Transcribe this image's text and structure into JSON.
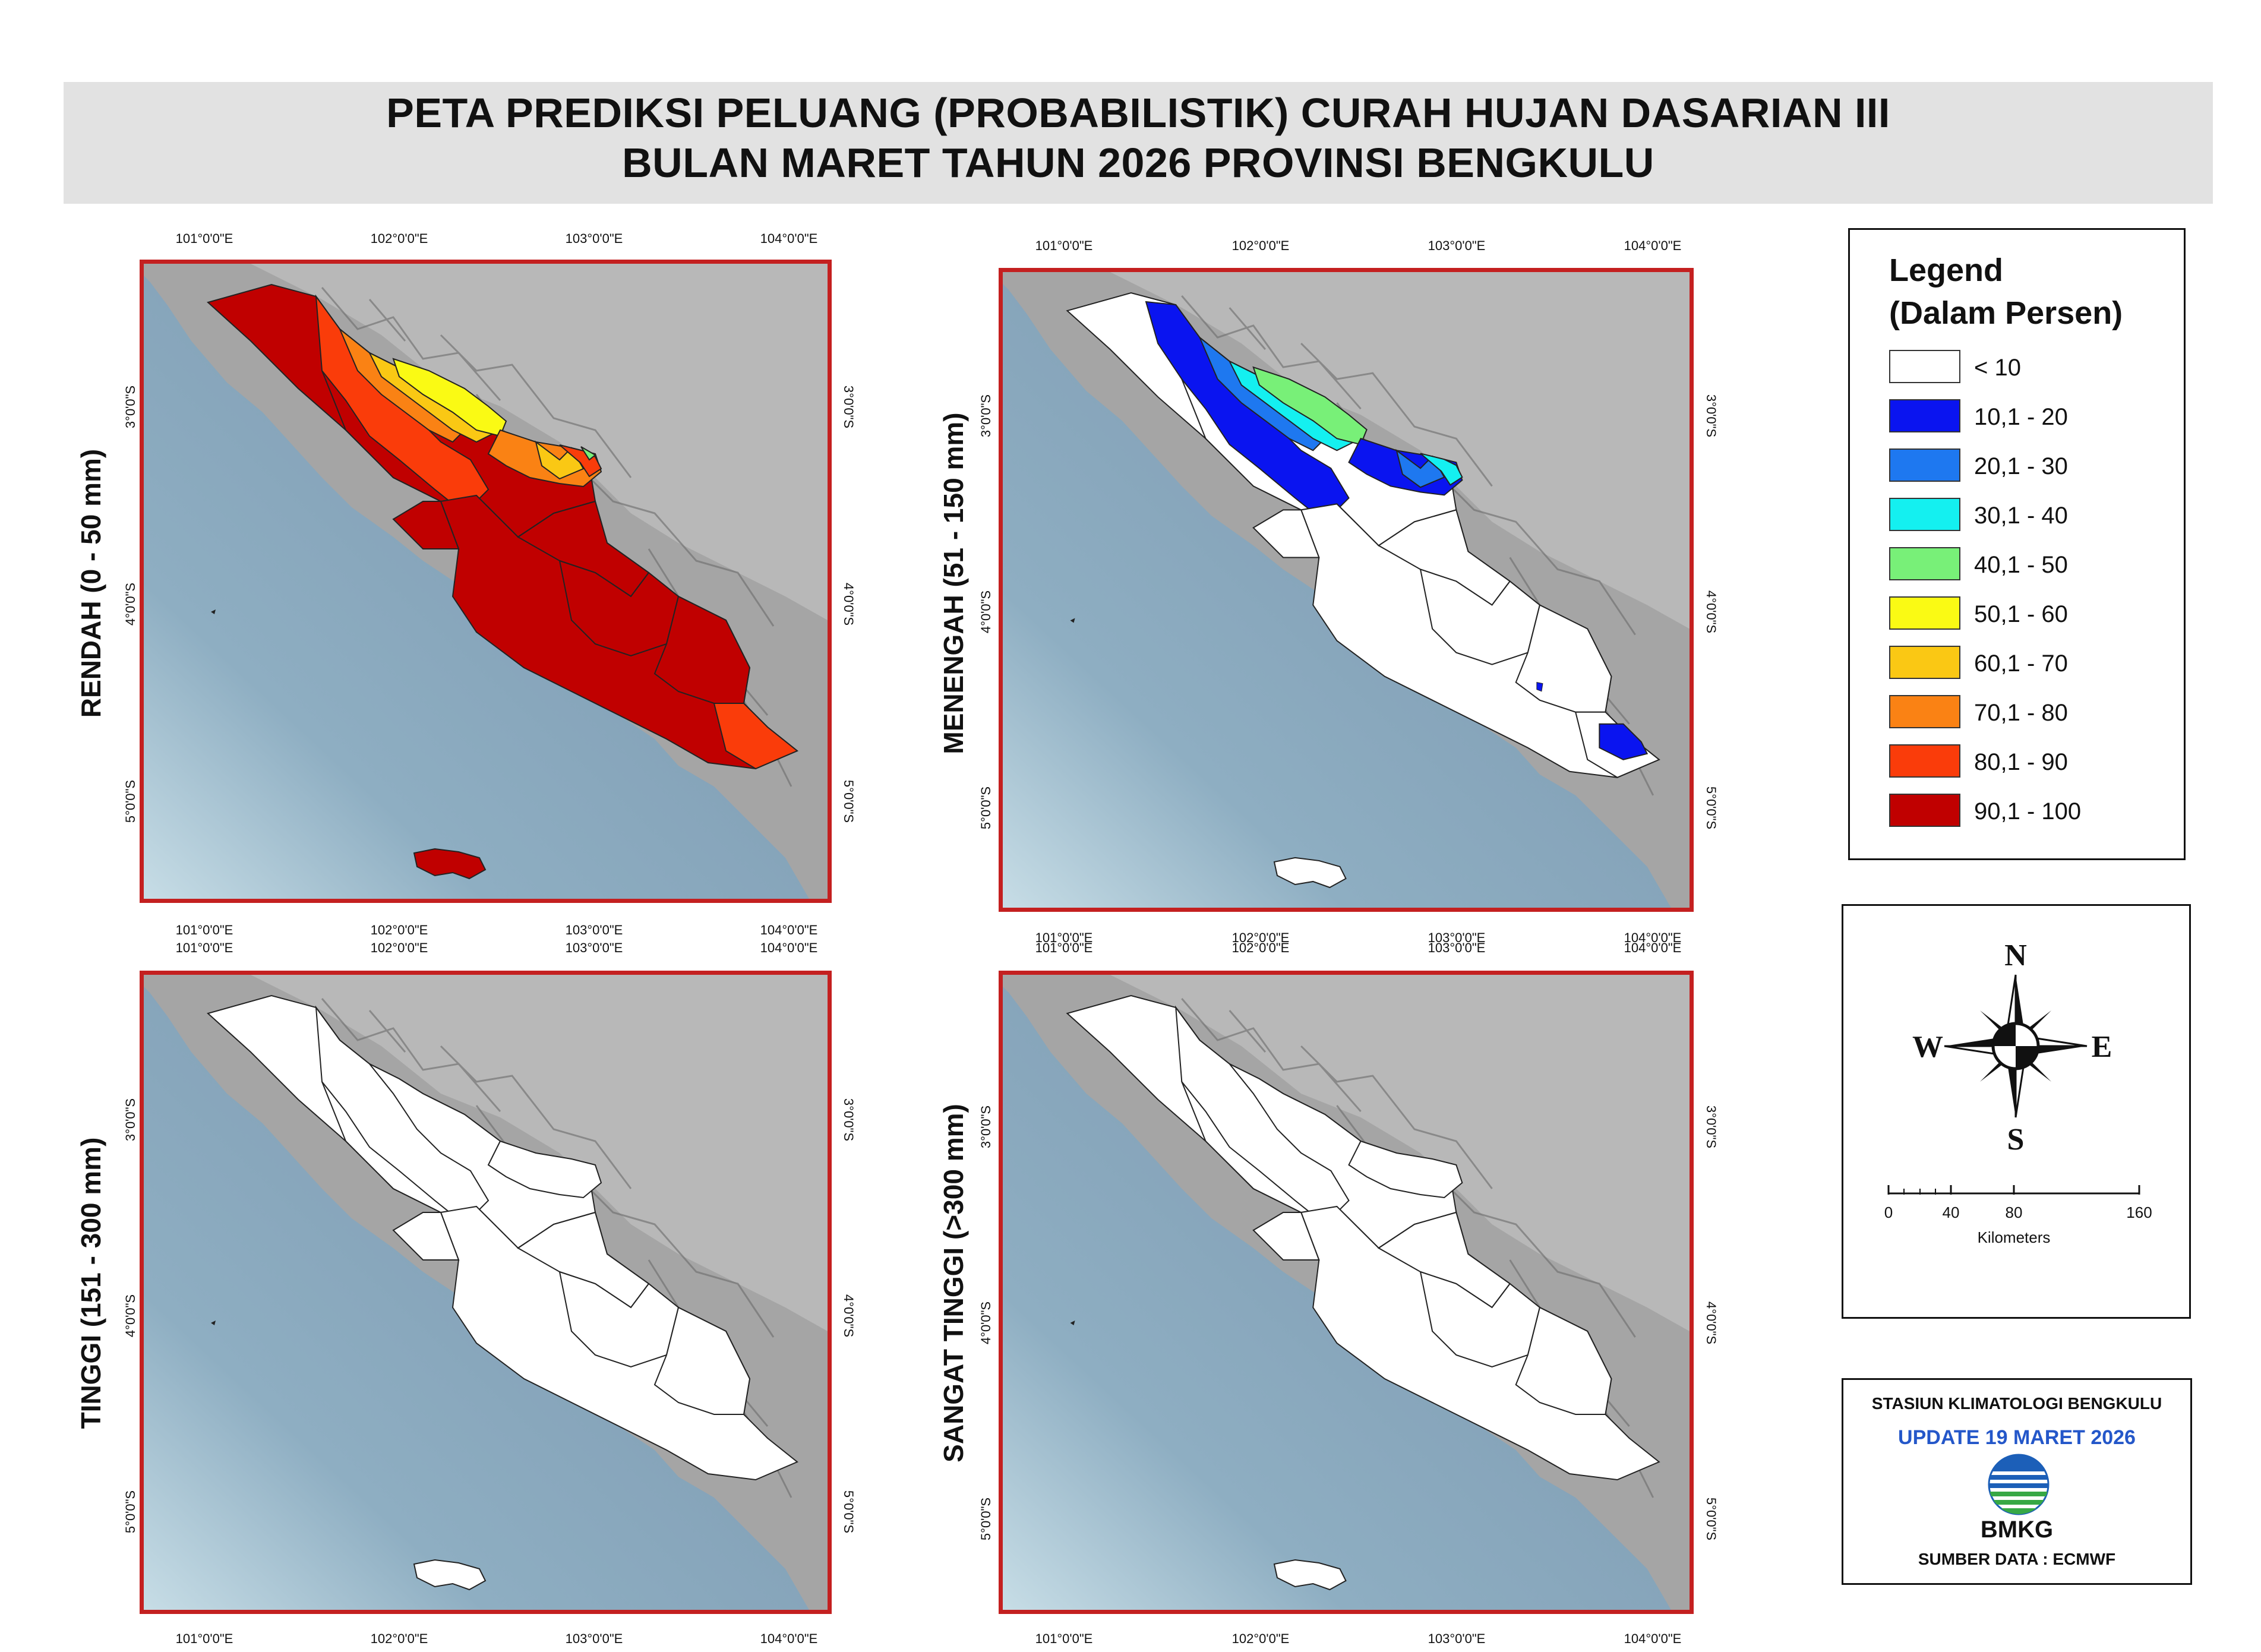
{
  "title": {
    "line1": "PETA PREDIKSI PELUANG (PROBABILISTIK) CURAH HUJAN DASARIAN III",
    "line2": "BULAN MARET TAHUN 2026 PROVINSI BENGKULU"
  },
  "axes": {
    "longitudes": [
      "101°0'0\"E",
      "102°0'0\"E",
      "103°0'0\"E",
      "104°0'0\"E"
    ],
    "latitudes": [
      "3°0'0\"S",
      "4°0'0\"S",
      "5°0'0\"S"
    ]
  },
  "panels": [
    {
      "label": "RENDAH (0 -  50 mm)",
      "scheme": "rendah"
    },
    {
      "label": "MENENGAH (51 -  150 mm)",
      "scheme": "menengah"
    },
    {
      "label": "TINGGI (151 -  300 mm)",
      "scheme": "blank"
    },
    {
      "label": "SANGAT TINGGI  (>300  mm)",
      "scheme": "blank"
    }
  ],
  "legend": {
    "title_line1": "Legend",
    "title_line2": "(Dalam Persen)",
    "classes": [
      {
        "label": "< 10",
        "color": "#ffffff"
      },
      {
        "label": "10,1 - 20",
        "color": "#0a14f0"
      },
      {
        "label": "20,1 - 30",
        "color": "#1e78f0"
      },
      {
        "label": "30,1 - 40",
        "color": "#14f0f0"
      },
      {
        "label": "40,1 - 50",
        "color": "#78f078"
      },
      {
        "label": "50,1 - 60",
        "color": "#fafa14"
      },
      {
        "label": "60,1 - 70",
        "color": "#fac814"
      },
      {
        "label": "70,1 - 80",
        "color": "#fa8214"
      },
      {
        "label": "80,1 - 90",
        "color": "#fa3c0a"
      },
      {
        "label": "90,1 - 100",
        "color": "#c00000"
      }
    ]
  },
  "compass": {
    "n": "N",
    "s": "S",
    "e": "E",
    "w": "W"
  },
  "scale": {
    "ticks": [
      "0",
      "40",
      "80",
      "160"
    ],
    "unit": "Kilometers"
  },
  "credit": {
    "station": "STASIUN KLIMATOLOGI BENGKULU",
    "update": "UPDATE 19 MARET 2026",
    "agency": "BMKG",
    "source": "SUMBER DATA : ECMWF",
    "colors": {
      "update": "#2457c9",
      "logo_blue": "#1c5fb8",
      "logo_green": "#37a845"
    }
  }
}
